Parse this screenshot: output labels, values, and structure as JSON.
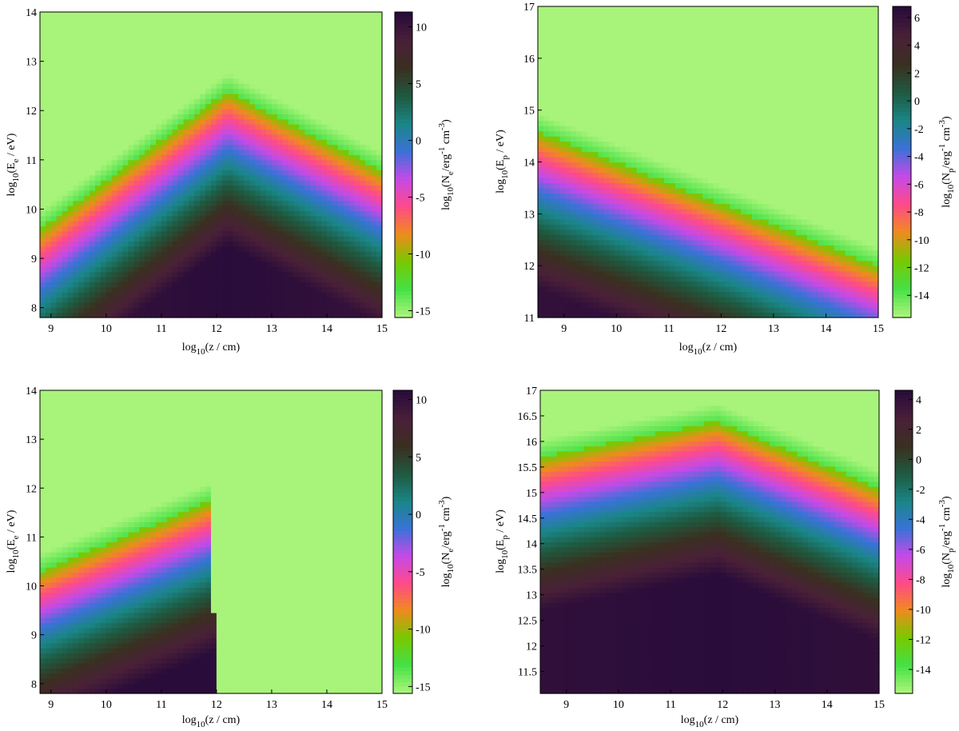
{
  "chart_data": [
    {
      "type": "heatmap",
      "id": "top-left",
      "xlabel": {
        "base": "log",
        "sub": "10",
        "rest": "(z / cm)"
      },
      "ylabel": {
        "base": "log",
        "sub": "10",
        "mid": "(E",
        "sub2": "e",
        "rest": " / eV)"
      },
      "clabel": {
        "base": "log",
        "sub": "10",
        "mid": "(N",
        "sub2": "e",
        "mid2": "/erg",
        "sup1": "-1",
        "mid3": " cm",
        "sup2": "-3",
        "rest": ")"
      },
      "xlim": [
        8.8,
        15
      ],
      "ylim": [
        7.8,
        14
      ],
      "clim": [
        -15.6,
        11.3
      ],
      "xticks": [
        "9",
        "10",
        "11",
        "12",
        "13",
        "14",
        "15"
      ],
      "yticks": [
        "8",
        "9",
        "10",
        "11",
        "12",
        "13",
        "14"
      ],
      "cticks": [
        "10",
        "5",
        "0",
        "-5",
        "-10",
        "-15"
      ],
      "grid": false,
      "density_model": {
        "kind": "tent",
        "peak_x": 12.2,
        "ridge_peak_y": 12.4,
        "ridge_left_y": 9.6,
        "ridge_right_y": 10.8,
        "max_value": 11.3,
        "floor": -15.6
      }
    },
    {
      "type": "heatmap",
      "id": "top-right",
      "xlabel": {
        "base": "log",
        "sub": "10",
        "rest": "(z / cm)"
      },
      "ylabel": {
        "base": "log",
        "sub": "10",
        "mid": "(E",
        "sub2": "p",
        "rest": " / eV)"
      },
      "clabel": {
        "base": "log",
        "sub": "10",
        "mid": "(N",
        "sub2": "p",
        "mid2": "/erg",
        "sup1": "-1",
        "mid3": " cm",
        "sup2": "-3",
        "rest": ")"
      },
      "xlim": [
        8.5,
        15
      ],
      "ylim": [
        11,
        17
      ],
      "clim": [
        -15.6,
        6.8
      ],
      "xticks": [
        "9",
        "10",
        "11",
        "12",
        "13",
        "14",
        "15"
      ],
      "yticks": [
        "11",
        "12",
        "13",
        "14",
        "15",
        "16",
        "17"
      ],
      "cticks": [
        "6",
        "4",
        "2",
        "0",
        "-2",
        "-4",
        "-6",
        "-8",
        "-10",
        "-12",
        "-14"
      ],
      "grid": false,
      "density_model": {
        "kind": "slope",
        "ridge_left_y": 14.6,
        "ridge_right_y": 12.0,
        "max_value": 6.8,
        "floor": -15.6
      }
    },
    {
      "type": "heatmap",
      "id": "bottom-left",
      "xlabel": {
        "base": "log",
        "sub": "10",
        "rest": "(z / cm)"
      },
      "ylabel": {
        "base": "log",
        "sub": "10",
        "mid": "(E",
        "sub2": "e",
        "rest": " / eV)"
      },
      "clabel": {
        "base": "log",
        "sub": "10",
        "mid": "(N",
        "sub2": "e",
        "mid2": "/erg",
        "sup1": "-1",
        "mid3": " cm",
        "sup2": "-3",
        "rest": ")"
      },
      "xlim": [
        8.8,
        15
      ],
      "ylim": [
        7.8,
        14
      ],
      "clim": [
        -15.6,
        10.8
      ],
      "xticks": [
        "9",
        "10",
        "11",
        "12",
        "13",
        "14",
        "15"
      ],
      "yticks": [
        "8",
        "9",
        "10",
        "11",
        "12",
        "13",
        "14"
      ],
      "cticks": [
        "10",
        "5",
        "0",
        "-5",
        "-10",
        "-15"
      ],
      "grid": false,
      "density_model": {
        "kind": "cutoff",
        "cutoff_x": 12.0,
        "ridge_left_y": 10.3,
        "ridge_right_y": 11.8,
        "max_value": 10.8,
        "floor": -15.6
      }
    },
    {
      "type": "heatmap",
      "id": "bottom-right",
      "xlabel": {
        "base": "log",
        "sub": "10",
        "rest": "(z / cm)"
      },
      "ylabel": {
        "base": "log",
        "sub": "10",
        "mid": "(E",
        "sub2": "p",
        "rest": " / eV)"
      },
      "clabel": {
        "base": "log",
        "sub": "10",
        "mid": "(N",
        "sub2": "p",
        "mid2": "/erg",
        "sup1": "-1",
        "mid3": " cm",
        "sup2": "-3",
        "rest": ")"
      },
      "xlim": [
        8.5,
        15
      ],
      "ylim": [
        11.07,
        17
      ],
      "clim": [
        -15.6,
        4.6
      ],
      "xticks": [
        "9",
        "10",
        "11",
        "12",
        "13",
        "14",
        "15"
      ],
      "yticks": [
        "11.5",
        "12",
        "12.5",
        "13",
        "13.5",
        "14",
        "14.5",
        "15",
        "15.5",
        "16",
        "16.5",
        "17"
      ],
      "cticks": [
        "4",
        "2",
        "0",
        "-2",
        "-4",
        "-6",
        "-8",
        "-10",
        "-12",
        "-14"
      ],
      "grid": false,
      "density_model": {
        "kind": "tent",
        "peak_x": 11.9,
        "ridge_peak_y": 16.4,
        "ridge_left_y": 15.7,
        "ridge_right_y": 15.1,
        "max_value": 4.6,
        "floor": -15.6
      }
    }
  ],
  "colors": {
    "background_floor": "#a8f47a",
    "colormap": [
      "#a8f47a",
      "#44e044",
      "#7ac800",
      "#f08a1e",
      "#ff4a8a",
      "#c44ae8",
      "#3a72d8",
      "#1a8686",
      "#1e5a40",
      "#3a3020",
      "#4a2038",
      "#2a0c3a"
    ]
  }
}
